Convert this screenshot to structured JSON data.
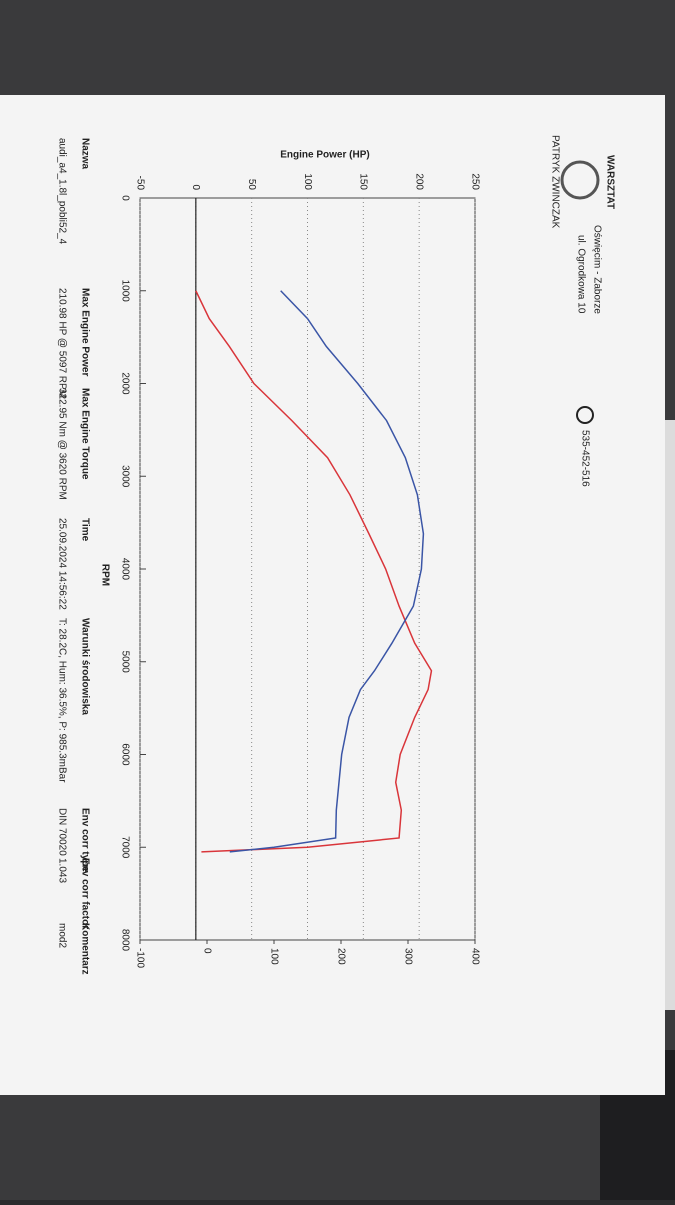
{
  "header": {
    "logo": "WARSZTAT",
    "owner": "PATRYK ZWINCZAK",
    "location": "Oświęcim - Zaborze",
    "address": "ul. Ogrodkowa 10",
    "phone": "535-452-516"
  },
  "chart_data": {
    "type": "line",
    "title": "Engine Power (HP)",
    "x_label": "RPM",
    "x": [
      1000,
      1300,
      1600,
      2000,
      2400,
      2800,
      3200,
      3620,
      4000,
      4400,
      4800,
      5097,
      5300,
      5600,
      6000,
      6300,
      6600,
      6900,
      7000,
      7050
    ],
    "series": [
      {
        "name": "Engine Power",
        "color": "#d9353a",
        "axis": "y",
        "values": [
          0,
          12,
          30,
          52,
          86,
          118,
          138,
          155,
          170,
          182,
          196,
          211,
          208,
          196,
          183,
          179,
          184,
          182,
          100,
          5
        ]
      },
      {
        "name": "Engine Torque",
        "color": "#3a55a6",
        "axis": "y2",
        "values": [
          110,
          150,
          178,
          225,
          268,
          296,
          314,
          323,
          320,
          308,
          276,
          250,
          229,
          212,
          201,
          197,
          193,
          192,
          100,
          34
        ]
      }
    ],
    "xlim": [
      0,
      8000
    ],
    "xticks": [
      0,
      1000,
      2000,
      3000,
      4000,
      5000,
      6000,
      7000,
      8000
    ],
    "ylim": [
      -50,
      250
    ],
    "yticks": [
      -50,
      0,
      50,
      100,
      150,
      200,
      250
    ],
    "y2lim": [
      -100,
      400
    ],
    "y2ticks": [
      -100,
      0,
      100,
      200,
      300,
      400
    ],
    "grid": true
  },
  "info": {
    "headers": [
      "Nazwa",
      "Max Engine Power",
      "Max Engine Torque",
      "Time",
      "Warunki środowiska",
      "Env corr type",
      "Env corr factor",
      "Komentarz"
    ],
    "values": [
      "audi_a4_1.8l_pobli52_4",
      "210.98 HP @ 5097 RPM",
      "322.95 Nm @ 3620 RPM",
      "25.09.2024 14:56:22",
      "T: 28.2C, Hum: 36.5%, P: 985.3mBar",
      "DIN 70020",
      "1.043",
      "mod2"
    ]
  }
}
